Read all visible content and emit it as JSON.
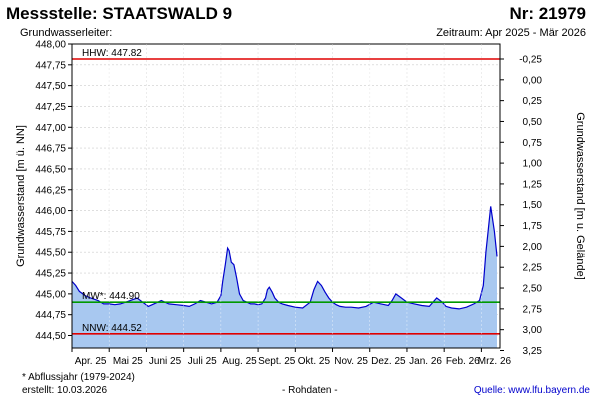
{
  "header": {
    "title": "Messstelle: STAATSWALD 9",
    "number": "Nr: 21979",
    "subtitle": "Grundwasserleiter:",
    "period": "Zeitraum: Apr 2025 - Mär 2026"
  },
  "footer": {
    "footnote": "* Abflussjahr (1979-2024)",
    "created": "erstellt:  10.03.2026",
    "raw": "- Rohdaten -",
    "source_label": "Quelle: ",
    "source_link": "www.lfu.bayern.de"
  },
  "colors": {
    "fill": "#a8c8f0",
    "line": "#0000cc",
    "hhw": "#e00000",
    "nnw": "#e00000",
    "mw": "#009900",
    "grid": "#cccccc"
  },
  "chart_data": {
    "type": "area",
    "ylabel": "Grundwasserstand [m ü. NN]",
    "ylabel_right": "Grundwasserstand [m u. Gelände]",
    "ylim": [
      444.35,
      448.0
    ],
    "yticks": [
      "448,00",
      "447,75",
      "447,50",
      "447,25",
      "447,00",
      "446,75",
      "446,50",
      "446,25",
      "446,00",
      "445,75",
      "445,50",
      "445,25",
      "445,00",
      "444,75",
      "444,50"
    ],
    "ytick_values": [
      448.0,
      447.75,
      447.5,
      447.25,
      447.0,
      446.75,
      446.5,
      446.25,
      446.0,
      445.75,
      445.5,
      445.25,
      445.0,
      444.75,
      444.5
    ],
    "yticks_right": [
      "-0,25",
      "0,00",
      "0,25",
      "0,50",
      "0,75",
      "1,00",
      "1,25",
      "1,50",
      "1,75",
      "2,00",
      "2,25",
      "2,50",
      "2,75",
      "3,00",
      "3,25"
    ],
    "ytick_right_values": [
      -0.25,
      0,
      0.25,
      0.5,
      0.75,
      1.0,
      1.25,
      1.5,
      1.75,
      2.0,
      2.25,
      2.5,
      2.75,
      3.0,
      3.25
    ],
    "right_axis_reference": 447.57,
    "xlim": [
      0,
      11.5
    ],
    "xticks": [
      "Apr. 25",
      "Mai 25",
      "Juni 25",
      "Juli 25",
      "Aug. 25",
      "Sept. 25",
      "Okt. 25",
      "Nov. 25",
      "Dez. 25",
      "Jan. 26",
      "Feb. 26",
      "Mrz. 26"
    ],
    "xtick_values": [
      0.5,
      1.5,
      2.5,
      3.5,
      4.5,
      5.5,
      6.5,
      7.5,
      8.5,
      9.5,
      10.5,
      11.35
    ],
    "reference_lines": [
      {
        "label": "HHW: 447.82",
        "value": 447.82,
        "key": "hhw"
      },
      {
        "label": "MW*: 444.90",
        "value": 444.9,
        "key": "mw"
      },
      {
        "label": "NNW: 444.52",
        "value": 444.52,
        "key": "nnw"
      }
    ],
    "series": [
      {
        "x": [
          0,
          0.1,
          0.2,
          0.35,
          0.5,
          0.7,
          0.85,
          1.0,
          1.15,
          1.3,
          1.5,
          1.75,
          1.9,
          2.05,
          2.2,
          2.4,
          2.6,
          2.8,
          3.0,
          3.15,
          3.3,
          3.45,
          3.6,
          3.75,
          3.9,
          4.0,
          4.05,
          4.12,
          4.18,
          4.22,
          4.28,
          4.35,
          4.42,
          4.5,
          4.6,
          4.7,
          4.8,
          4.9,
          5.0,
          5.1,
          5.2,
          5.25,
          5.3,
          5.38,
          5.45,
          5.55,
          5.65,
          5.8,
          6.0,
          6.2,
          6.4,
          6.5,
          6.6,
          6.7,
          6.8,
          6.9,
          7.0,
          7.1,
          7.2,
          7.35,
          7.5,
          7.7,
          7.9,
          8.1,
          8.3,
          8.5,
          8.6,
          8.7,
          8.85,
          9.0,
          9.2,
          9.4,
          9.6,
          9.8,
          9.95,
          10.05,
          10.2,
          10.4,
          10.6,
          10.8,
          10.95,
          11.05,
          11.12,
          11.18,
          11.25,
          11.35,
          11.42
        ],
        "values": [
          445.15,
          445.1,
          445.03,
          444.98,
          444.95,
          444.92,
          444.88,
          444.88,
          444.87,
          444.88,
          444.91,
          444.95,
          444.9,
          444.85,
          444.88,
          444.92,
          444.88,
          444.87,
          444.86,
          444.85,
          444.88,
          444.92,
          444.9,
          444.88,
          444.9,
          444.98,
          445.15,
          445.35,
          445.55,
          445.52,
          445.38,
          445.35,
          445.2,
          445.0,
          444.92,
          444.9,
          444.88,
          444.88,
          444.87,
          444.88,
          444.95,
          445.05,
          445.08,
          445.02,
          444.95,
          444.9,
          444.88,
          444.86,
          444.84,
          444.83,
          444.9,
          445.05,
          445.15,
          445.1,
          445.02,
          444.95,
          444.9,
          444.87,
          444.85,
          444.84,
          444.84,
          444.83,
          444.85,
          444.9,
          444.88,
          444.86,
          444.92,
          445.0,
          444.95,
          444.9,
          444.88,
          444.86,
          444.85,
          444.95,
          444.9,
          444.85,
          444.83,
          444.82,
          444.84,
          444.88,
          444.92,
          445.1,
          445.5,
          445.75,
          446.05,
          445.75,
          445.45
        ]
      }
    ]
  }
}
